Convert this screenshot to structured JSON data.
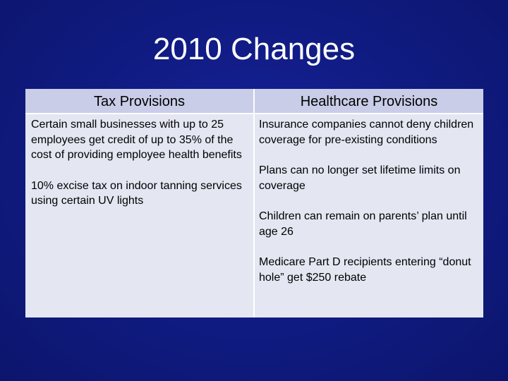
{
  "slide": {
    "title": "2010 Changes"
  },
  "table": {
    "headers": {
      "tax": "Tax Provisions",
      "healthcare": "Healthcare Provisions"
    },
    "tax_items": [
      "Certain small businesses with up to 25 employees get credit of up to 35% of the cost of providing employee health benefits",
      "10% excise tax on indoor tanning services using certain UV lights"
    ],
    "healthcare_items": [
      "Insurance companies cannot deny children coverage for pre-existing conditions",
      "Plans can no longer set lifetime limits on coverage",
      "Children can remain on parents’ plan until age 26",
      "Medicare Part D recipients entering “donut hole” get $250 rebate"
    ]
  },
  "colors": {
    "background": "#0f1a7a",
    "header_fill": "#c9cde8",
    "body_fill": "#e4e6f2"
  }
}
